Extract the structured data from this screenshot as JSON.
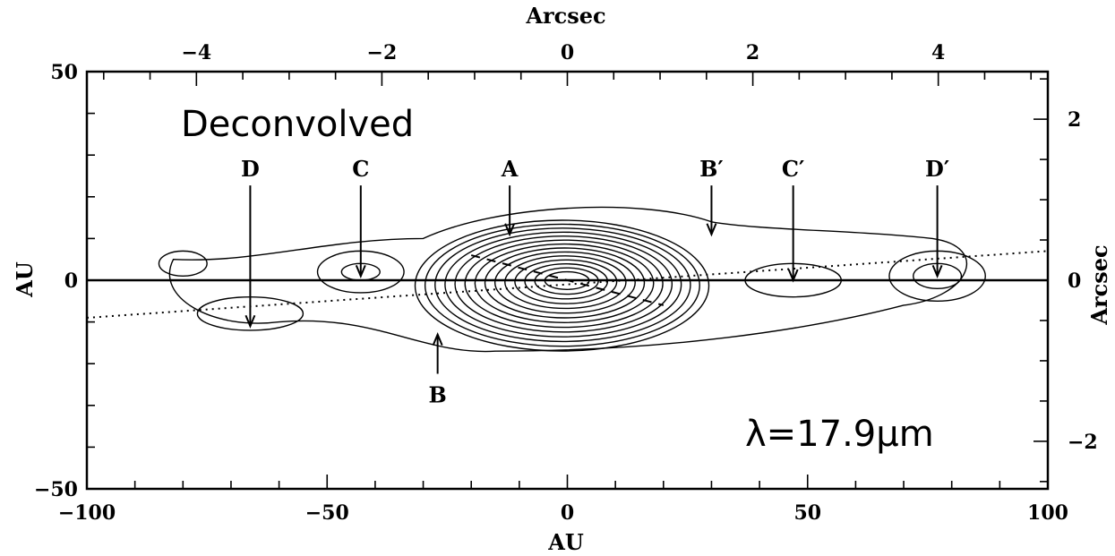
{
  "chart_data": {
    "type": "contour",
    "panel_label": "Deconvolved",
    "wavelength_label": "λ=17.9μm",
    "xlabel_bottom": "AU",
    "xlabel_top": "Arcsec",
    "ylabel_left": "AU",
    "ylabel_right": "Arcsec",
    "xlim": [
      -100,
      100
    ],
    "ylim": [
      -50,
      50
    ],
    "x_ticks": [
      {
        "value": -100,
        "label": "−100"
      },
      {
        "value": -50,
        "label": "−50"
      },
      {
        "value": 0,
        "label": "0"
      },
      {
        "value": 50,
        "label": "50"
      },
      {
        "value": 100,
        "label": "100"
      }
    ],
    "y_ticks": [
      {
        "value": -50,
        "label": "−50"
      },
      {
        "value": 0,
        "label": "0"
      },
      {
        "value": 50,
        "label": "50"
      }
    ],
    "x_arcsec_ticks": [
      {
        "value": -4,
        "label": "−4"
      },
      {
        "value": -2,
        "label": "−2"
      },
      {
        "value": 0,
        "label": "0"
      },
      {
        "value": 2,
        "label": "2"
      },
      {
        "value": 4,
        "label": "4"
      }
    ],
    "y_arcsec_ticks": [
      {
        "value": 2,
        "label": "2"
      },
      {
        "value": 0,
        "label": "0"
      },
      {
        "value": -2,
        "label": "−2"
      }
    ],
    "features": [
      {
        "name": "D",
        "x": -66,
        "y_label": 24,
        "y_tip": -11
      },
      {
        "name": "C",
        "x": -43,
        "y_label": 24,
        "y_tip": 1
      },
      {
        "name": "A",
        "x": -12,
        "y_label": 24,
        "y_tip": 11
      },
      {
        "name": "B′",
        "x": 30,
        "y_label": 24,
        "y_tip": 11
      },
      {
        "name": "C′",
        "x": 47,
        "y_label": 24,
        "y_tip": 0
      },
      {
        "name": "D′",
        "x": 77,
        "y_label": 24,
        "y_tip": 1
      },
      {
        "name": "B",
        "x": -27,
        "y_label": -25,
        "y_tip": -13
      }
    ],
    "dotted_line": [
      [
        -100,
        -9
      ],
      [
        100,
        7
      ]
    ],
    "dashed_line": [
      [
        -20,
        6
      ],
      [
        20,
        -6
      ]
    ],
    "central_peak": {
      "x": 0,
      "y": 0
    },
    "contour_levels": 14
  }
}
